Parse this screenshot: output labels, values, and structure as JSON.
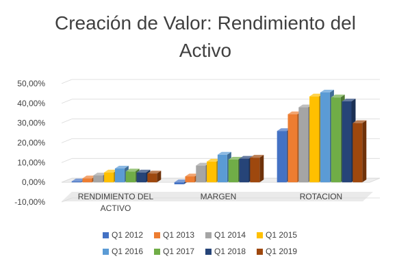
{
  "chart_data": {
    "type": "bar",
    "title": "Creación de Valor: Rendimiento del Activo",
    "categories": [
      "RENDIMIENTO DEL ACTIVO",
      "MARGEN",
      "ROTACION"
    ],
    "category_label_lines": [
      [
        "RENDIMIENTO DEL",
        "ACTIVO"
      ],
      [
        "MARGEN"
      ],
      [
        "ROTACION"
      ]
    ],
    "ylim": [
      -10,
      50
    ],
    "yticks": [
      -10,
      0,
      10,
      20,
      30,
      40,
      50
    ],
    "ytick_labels": [
      "-10,00%",
      "0,00%",
      "10,00%",
      "20,00%",
      "30,00%",
      "40,00%",
      "50,00%"
    ],
    "grid": true,
    "legend_position": "bottom",
    "series": [
      {
        "name": "Q1 2012",
        "color": "#4472C4",
        "values": [
          0.5,
          -1.0,
          26.0
        ]
      },
      {
        "name": "Q1 2013",
        "color": "#ED7D31",
        "values": [
          2.0,
          3.0,
          34.5
        ]
      },
      {
        "name": "Q1 2014",
        "color": "#A5A5A5",
        "values": [
          3.5,
          8.5,
          38.0
        ]
      },
      {
        "name": "Q1 2015",
        "color": "#FFC000",
        "values": [
          5.0,
          10.5,
          43.5
        ]
      },
      {
        "name": "Q1 2016",
        "color": "#5B9BD5",
        "values": [
          7.0,
          14.0,
          45.5
        ]
      },
      {
        "name": "Q1 2017",
        "color": "#70AD47",
        "values": [
          5.5,
          11.5,
          43.0
        ]
      },
      {
        "name": "Q1 2018",
        "color": "#264478",
        "values": [
          5.0,
          12.0,
          41.0
        ]
      },
      {
        "name": "Q1 2019",
        "color": "#9E480E",
        "values": [
          4.5,
          12.5,
          30.0
        ]
      }
    ]
  }
}
